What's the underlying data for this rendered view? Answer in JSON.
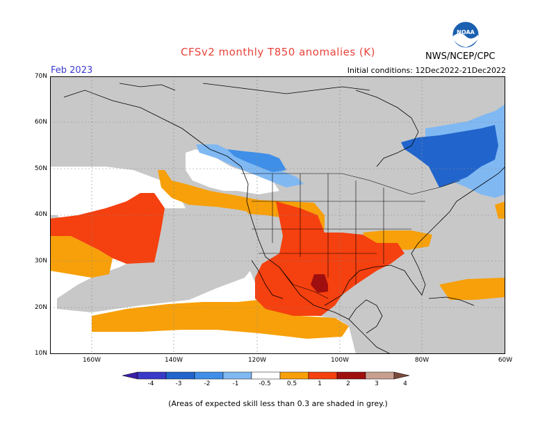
{
  "header": {
    "title": "CFSv2 monthly T850 anomalies (K)",
    "month": "Feb 2023",
    "initial_conditions": "Initial conditions: 12Dec2022-21Dec2022",
    "agency": "NWS/NCEP/CPC",
    "logo_text": "NOAA",
    "logo_icon": "noaa-logo-icon"
  },
  "axes": {
    "lat_labels": [
      "70N",
      "60N",
      "50N",
      "40N",
      "30N",
      "20N",
      "10N"
    ],
    "lon_labels": [
      "160W",
      "140W",
      "120W",
      "100W",
      "80W",
      "60W"
    ]
  },
  "legend": {
    "labels": [
      "-4",
      "-3",
      "-2",
      "-1",
      "-0.5",
      "0.5",
      "1",
      "2",
      "3",
      "4"
    ],
    "colors": [
      "#3c1fa8",
      "#3a3ac8",
      "#2165cc",
      "#3f8fe8",
      "#80b8f2",
      "#ffffff",
      "#f7a00a",
      "#f5400f",
      "#a00f0f",
      "#c8a090",
      "#7a4a3a"
    ]
  },
  "colors": {
    "grey_low_skill": "#c8c8c8",
    "title": "#e8423a",
    "month": "#3a3ad0",
    "grid": "#888888",
    "coast": "#000000"
  },
  "footer": {
    "note": "(Areas of expected skill less than 0.3 are shaded in grey.)"
  }
}
